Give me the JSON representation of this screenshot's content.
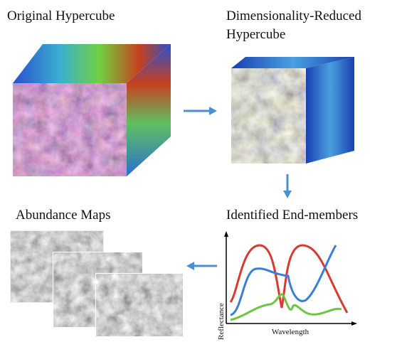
{
  "nodes": [
    {
      "label": "Original Hypercube"
    },
    {
      "label": [
        "Dimensionality-Reduced",
        "Hypercube"
      ]
    },
    {
      "label": "Identified End-members",
      "x_label": "Wavelength",
      "y_label": "Reflectance"
    },
    {
      "label": "Abundance Maps"
    }
  ]
}
